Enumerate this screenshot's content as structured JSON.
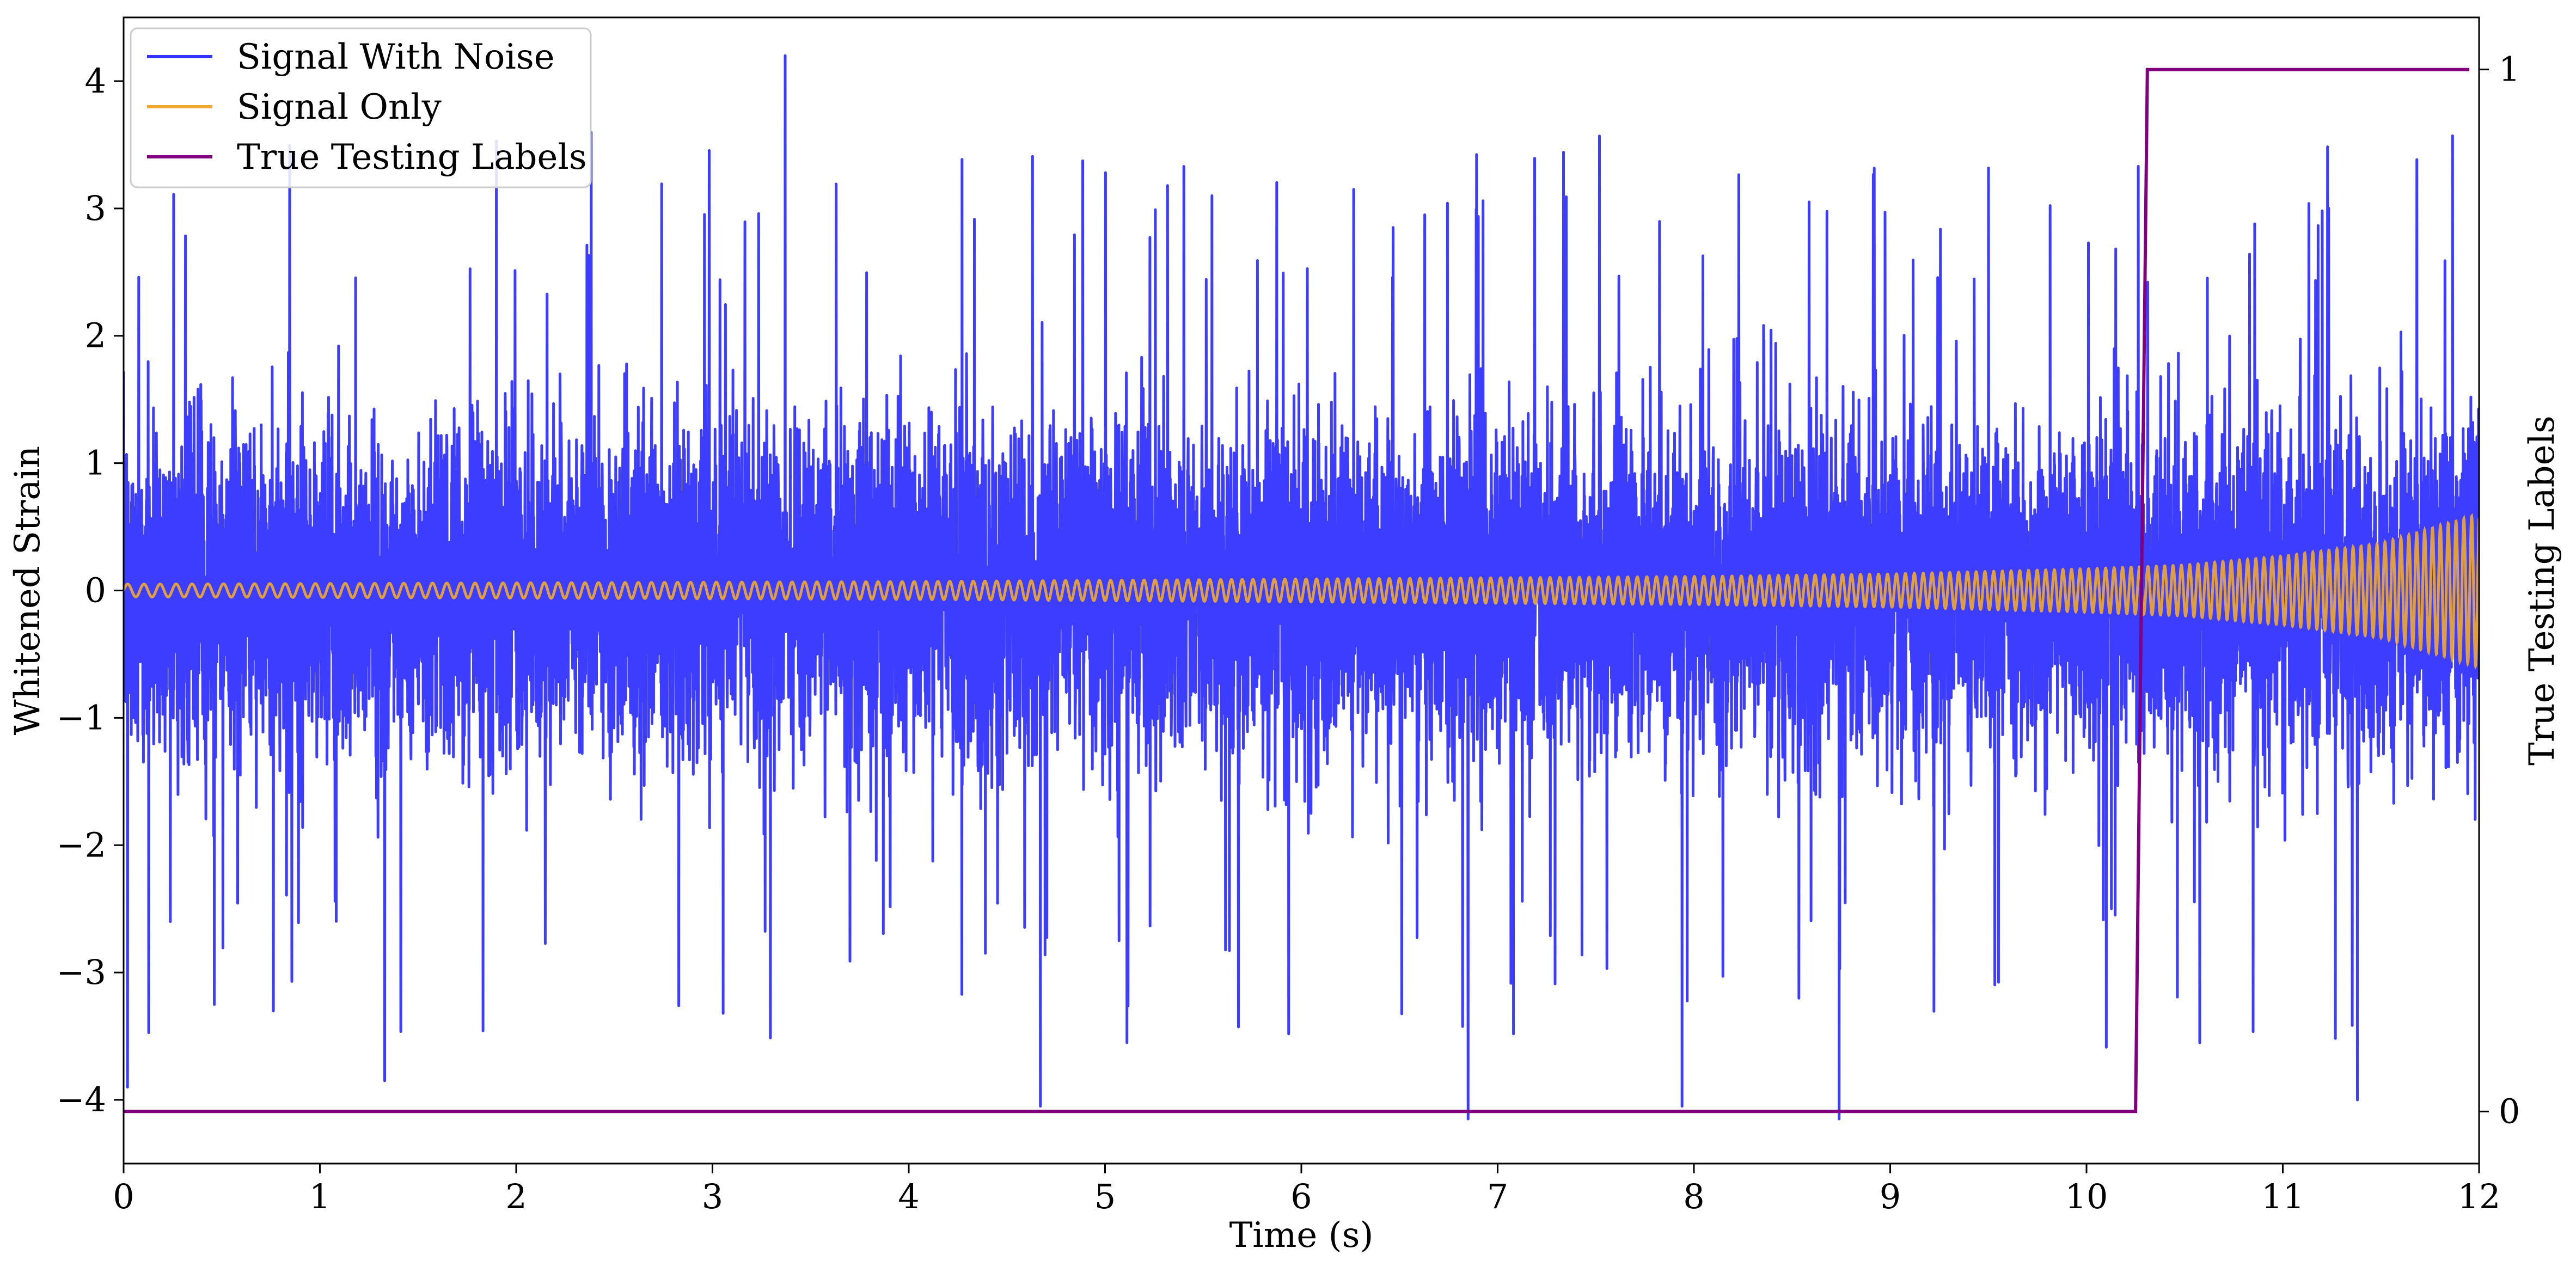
{
  "chart_data": {
    "type": "line",
    "title": "",
    "xlabel": "Time (s)",
    "ylabel": "Whitened Strain",
    "y2label": "True Testing Labels",
    "xlim": [
      0,
      12
    ],
    "ylim": [
      -4.5,
      4.5
    ],
    "y2lim": [
      -0.05,
      1.05
    ],
    "x_ticks": [
      0,
      1,
      2,
      3,
      4,
      5,
      6,
      7,
      8,
      9,
      10,
      11,
      12
    ],
    "y_ticks": [
      -4,
      -3,
      -2,
      -1,
      0,
      1,
      2,
      3,
      4
    ],
    "y2_ticks": [
      0,
      1
    ],
    "grid": false,
    "legend_position": "top-left",
    "series": [
      {
        "name": "Signal With Noise",
        "axis": "left",
        "color": "#3333ff",
        "description_values": {
          "bulk_range": [
            -1.3,
            1.3
          ],
          "peak_max": 4.2,
          "peak_min": -4.15,
          "notable_peaks": [
            {
              "x": 3.37,
              "y": 4.2
            },
            {
              "x": 1.33,
              "y": -3.85
            },
            {
              "x": 4.67,
              "y": -4.05
            },
            {
              "x": 6.85,
              "y": -4.15
            },
            {
              "x": 7.94,
              "y": -4.05
            },
            {
              "x": 8.74,
              "y": -4.15
            },
            {
              "x": 11.38,
              "y": -4.0
            },
            {
              "x": 0.02,
              "y": -3.9
            }
          ]
        }
      },
      {
        "name": "Signal Only",
        "axis": "left",
        "color": "#f0a830",
        "envelope": [
          {
            "x": 0,
            "amp": 0.05
          },
          {
            "x": 2,
            "amp": 0.06
          },
          {
            "x": 4,
            "amp": 0.07
          },
          {
            "x": 6,
            "amp": 0.09
          },
          {
            "x": 8,
            "amp": 0.11
          },
          {
            "x": 9,
            "amp": 0.13
          },
          {
            "x": 10,
            "amp": 0.17
          },
          {
            "x": 10.5,
            "amp": 0.2
          },
          {
            "x": 11,
            "amp": 0.27
          },
          {
            "x": 11.5,
            "amp": 0.37
          },
          {
            "x": 12,
            "amp": 0.6
          }
        ]
      },
      {
        "name": "True Testing Labels",
        "axis": "right",
        "color": "#800080",
        "x": [
          0,
          10.25,
          10.31,
          11.95
        ],
        "values": [
          0,
          0,
          1,
          1
        ]
      }
    ]
  }
}
